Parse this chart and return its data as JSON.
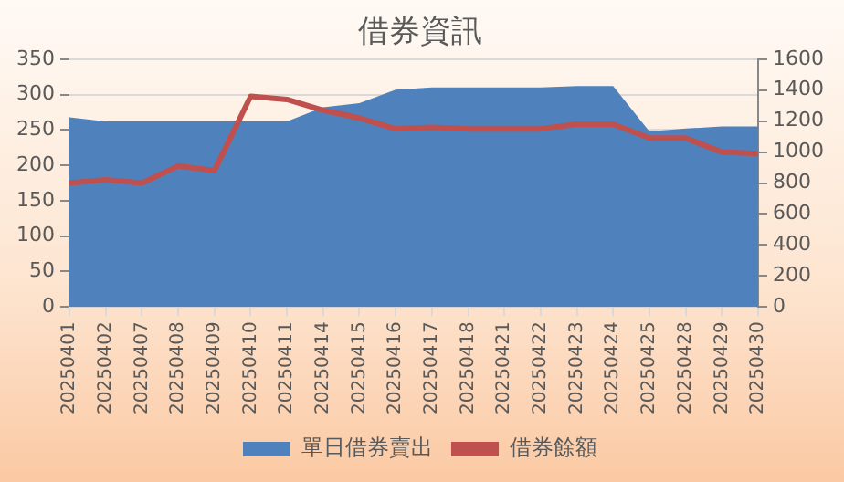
{
  "chart_data": {
    "type": "area",
    "title": "借券資訊",
    "categories": [
      "20250401",
      "20250402",
      "20250407",
      "20250408",
      "20250409",
      "20250410",
      "20250411",
      "20250414",
      "20250415",
      "20250416",
      "20250417",
      "20250418",
      "20250421",
      "20250422",
      "20250423",
      "20250424",
      "20250425",
      "20250428",
      "20250429",
      "20250430"
    ],
    "series": [
      {
        "name": "單日借券賣出",
        "type": "area",
        "color": "#4f81bd",
        "values": [
          268,
          262,
          262,
          262,
          262,
          262,
          262,
          282,
          288,
          307,
          310,
          310,
          310,
          310,
          312,
          312,
          248,
          252,
          255,
          255
        ]
      },
      {
        "name": "借券餘額",
        "type": "line",
        "axis": "y2",
        "color": "#c0504d",
        "values": [
          800,
          820,
          800,
          910,
          880,
          1360,
          1340,
          1270,
          1220,
          1150,
          1160,
          1150,
          1150,
          1150,
          1180,
          1180,
          1090,
          1090,
          1000,
          990
        ]
      }
    ],
    "ylim": [
      0,
      350
    ],
    "yticks": [
      0,
      50,
      100,
      150,
      200,
      250,
      300,
      350
    ],
    "y2lim": [
      0,
      1600
    ],
    "y2ticks": [
      0,
      200,
      400,
      600,
      800,
      1000,
      1200,
      1400,
      1600
    ],
    "grid": "y",
    "legend": "bottom",
    "marker": "none"
  }
}
